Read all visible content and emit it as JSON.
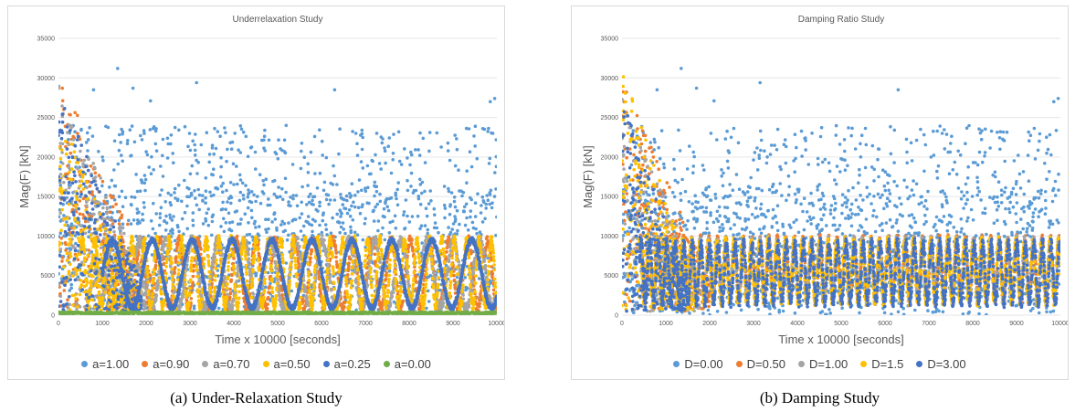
{
  "figures": [
    {
      "caption": "(a) Under-Relaxation Study",
      "chart_data": {
        "type": "scatter",
        "title": "Underrelaxation Study",
        "xlabel": "Time x 10000 [seconds]",
        "ylabel": "Mag(F) [kN]",
        "xlim": [
          0,
          10000
        ],
        "ylim": [
          0,
          35000
        ],
        "xticks": [
          0,
          1000,
          2000,
          3000,
          4000,
          5000,
          6000,
          7000,
          8000,
          9000,
          10000
        ],
        "yticks": [
          0,
          5000,
          10000,
          15000,
          20000,
          25000,
          30000,
          35000
        ],
        "grid": "horizontal",
        "legend_position": "bottom",
        "series": [
          {
            "name": "a=1.00",
            "color": "#5b9bd5",
            "pattern": "broad scatter between 0 and ~25000, outliers up to ~31200"
          },
          {
            "name": "a=0.90",
            "color": "#ed7d31",
            "pattern": "spikes up to ~30000 near t=200, settles into oscillation 1000-10000"
          },
          {
            "name": "a=0.70",
            "color": "#a5a5a5",
            "pattern": "spikes up to ~29000 early, oscillation ~1000-10000"
          },
          {
            "name": "a=0.50",
            "color": "#ffc000",
            "pattern": "spikes up to ~25000 early, oscillation ~500-10000"
          },
          {
            "name": "a=0.25",
            "color": "#4472c4",
            "pattern": "spikes up to ~28000 early, slow sinusoidal oscillation ~1000-10000, period ~900"
          },
          {
            "name": "a=0.00",
            "color": "#70ad47",
            "pattern": "flat near 0 to ~500"
          }
        ],
        "highlights": [
          {
            "x": 1350,
            "y": 31200
          },
          {
            "x": 3150,
            "y": 29400
          },
          {
            "x": 6300,
            "y": 28500
          },
          {
            "x": 9950,
            "y": 27400
          },
          {
            "x": 9850,
            "y": 27000
          },
          {
            "x": 2100,
            "y": 27100
          },
          {
            "x": 1700,
            "y": 28700
          },
          {
            "x": 800,
            "y": 28500
          }
        ]
      }
    },
    {
      "caption": "(b) Damping Study",
      "chart_data": {
        "type": "scatter",
        "title": "Damping Ratio Study",
        "xlabel": "Time x 10000 [seconds]",
        "ylabel": "Mag(F) [kN]",
        "xlim": [
          0,
          10000
        ],
        "ylim": [
          0,
          35000
        ],
        "xticks": [
          0,
          1000,
          2000,
          3000,
          4000,
          5000,
          6000,
          7000,
          8000,
          9000,
          10000
        ],
        "yticks": [
          0,
          5000,
          10000,
          15000,
          20000,
          25000,
          30000,
          35000
        ],
        "grid": "horizontal",
        "legend_position": "bottom",
        "series": [
          {
            "name": "D=0.00",
            "color": "#5b9bd5",
            "pattern": "broad scatter between 0 and ~25000, outliers up to ~31200"
          },
          {
            "name": "D=0.50",
            "color": "#ed7d31",
            "pattern": "spikes up to ~30000 early, fast oscillation ~2000-10000"
          },
          {
            "name": "D=1.00",
            "color": "#a5a5a5",
            "pattern": "spikes early, fast oscillation ~2000-10000"
          },
          {
            "name": "D=1.5",
            "color": "#ffc000",
            "pattern": "spikes up to ~31000 early, fast oscillation ~2000-10000"
          },
          {
            "name": "D=3.00",
            "color": "#4472c4",
            "pattern": "spikes up to ~27000 early, fast oscillation between ~2000 and ~9500, period ~200"
          }
        ],
        "highlights": [
          {
            "x": 1350,
            "y": 31200
          },
          {
            "x": 3150,
            "y": 29400
          },
          {
            "x": 6300,
            "y": 28500
          },
          {
            "x": 9950,
            "y": 27400
          },
          {
            "x": 9850,
            "y": 27000
          },
          {
            "x": 2100,
            "y": 27100
          },
          {
            "x": 1700,
            "y": 28700
          },
          {
            "x": 800,
            "y": 28500
          }
        ]
      }
    }
  ]
}
